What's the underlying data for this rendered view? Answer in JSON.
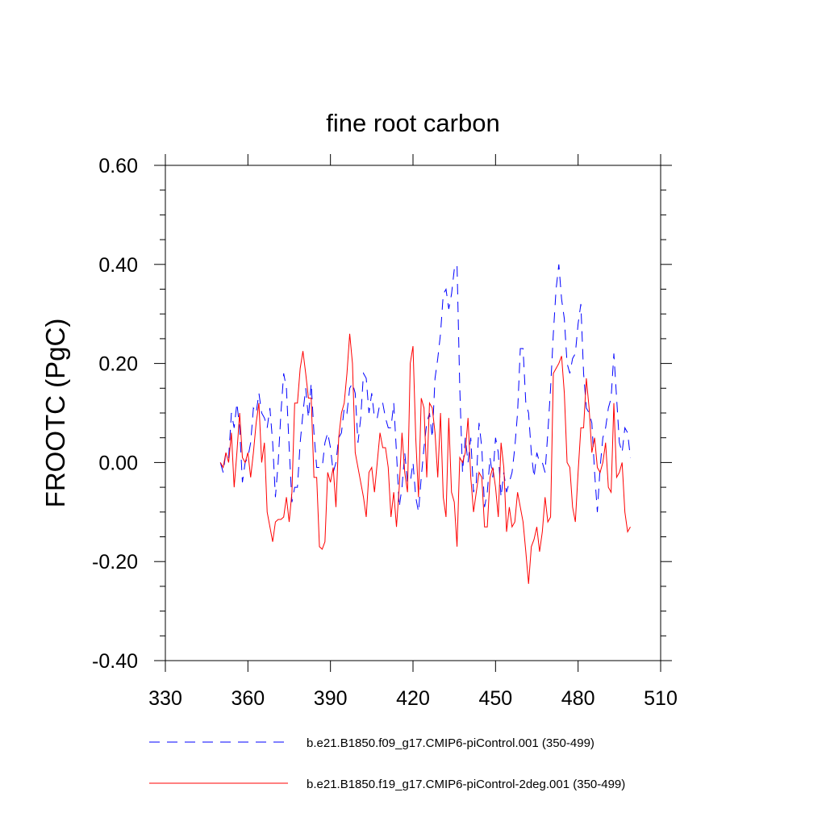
{
  "chart_data": {
    "type": "line",
    "title": "fine root carbon",
    "y_label": "FROOTC  (PgC)",
    "x": [
      350,
      351,
      352,
      353,
      354,
      355,
      356,
      357,
      358,
      359,
      360,
      361,
      362,
      363,
      364,
      365,
      366,
      367,
      368,
      369,
      370,
      371,
      372,
      373,
      374,
      375,
      376,
      377,
      378,
      379,
      380,
      381,
      382,
      383,
      384,
      385,
      386,
      387,
      388,
      389,
      390,
      391,
      392,
      393,
      394,
      395,
      396,
      397,
      398,
      399,
      400,
      401,
      402,
      403,
      404,
      405,
      406,
      407,
      408,
      409,
      410,
      411,
      412,
      413,
      414,
      415,
      416,
      417,
      418,
      419,
      420,
      421,
      422,
      423,
      424,
      425,
      426,
      427,
      428,
      429,
      430,
      431,
      432,
      433,
      434,
      435,
      436,
      437,
      438,
      439,
      440,
      441,
      442,
      443,
      444,
      445,
      446,
      447,
      448,
      449,
      450,
      451,
      452,
      453,
      454,
      455,
      456,
      457,
      458,
      459,
      460,
      461,
      462,
      463,
      464,
      465,
      466,
      467,
      468,
      469,
      470,
      471,
      472,
      473,
      474,
      475,
      476,
      477,
      478,
      479,
      480,
      481,
      482,
      483,
      484,
      485,
      486,
      487,
      488,
      489,
      490,
      491,
      492,
      493,
      494,
      495,
      496,
      497,
      498,
      499
    ],
    "series": [
      {
        "name": "b.e21.B1850.f09_g17.CMIP6-piControl.001 (350-499)",
        "color": "#0000ff",
        "dash": true,
        "values": [
          0.0,
          -0.02,
          0.02,
          0.01,
          0.1,
          0.07,
          0.12,
          0.07,
          -0.04,
          0.0,
          0.01,
          0.04,
          0.11,
          0.1,
          0.14,
          0.1,
          0.09,
          0.07,
          0.11,
          0.04,
          -0.07,
          0.0,
          0.1,
          0.18,
          0.15,
          0.03,
          -0.08,
          -0.05,
          -0.05,
          0.04,
          0.1,
          0.15,
          0.09,
          0.16,
          0.06,
          -0.01,
          -0.01,
          -0.01,
          0.04,
          0.06,
          0.03,
          -0.02,
          0.0,
          0.05,
          0.06,
          0.11,
          0.1,
          0.15,
          0.16,
          0.14,
          0.04,
          0.09,
          0.18,
          0.17,
          0.1,
          0.14,
          0.09,
          0.09,
          0.12,
          0.12,
          0.09,
          0.07,
          0.07,
          0.12,
          0.02,
          -0.09,
          -0.05,
          0.02,
          -0.04,
          -0.04,
          0.0,
          -0.07,
          -0.1,
          -0.03,
          0.03,
          0.08,
          0.1,
          0.05,
          0.17,
          0.21,
          0.26,
          0.34,
          0.35,
          0.31,
          0.34,
          0.39,
          0.4,
          0.15,
          -0.02,
          0.05,
          0.0,
          0.05,
          -0.06,
          -0.04,
          0.08,
          0.03,
          -0.09,
          -0.06,
          0.01,
          -0.03,
          0.05,
          0.02,
          -0.07,
          -0.02,
          -0.06,
          -0.04,
          -0.02,
          0.03,
          0.1,
          0.23,
          0.23,
          0.12,
          0.1,
          0.02,
          -0.03,
          0.02,
          0.0,
          0.0,
          -0.02,
          0.06,
          0.15,
          0.26,
          0.35,
          0.4,
          0.33,
          0.29,
          0.2,
          0.18,
          0.21,
          0.22,
          0.28,
          0.32,
          0.18,
          0.11,
          0.1,
          0.08,
          -0.02,
          -0.1,
          -0.01,
          0.05,
          0.07,
          0.11,
          0.13,
          0.22,
          0.13,
          0.04,
          0.02,
          0.07,
          0.06,
          0.01
        ]
      },
      {
        "name": "b.e21.B1850.f19_g17.CMIP6-piControl-2deg.001 (350-499)",
        "color": "#ff0000",
        "dash": false,
        "values": [
          0.0,
          -0.01,
          0.02,
          0.0,
          0.06,
          -0.05,
          0.02,
          0.1,
          0.01,
          0.0,
          0.02,
          -0.03,
          0.02,
          0.08,
          0.12,
          0.0,
          0.04,
          -0.1,
          -0.13,
          -0.16,
          -0.12,
          -0.115,
          -0.115,
          -0.11,
          -0.07,
          -0.12,
          -0.06,
          0.12,
          0.12,
          0.19,
          0.225,
          0.18,
          0.13,
          0.13,
          -0.03,
          -0.03,
          -0.17,
          -0.175,
          -0.16,
          -0.02,
          -0.04,
          -0.01,
          -0.09,
          0.05,
          0.1,
          0.12,
          0.18,
          0.26,
          0.2,
          0.02,
          -0.01,
          -0.04,
          -0.07,
          -0.11,
          -0.02,
          -0.01,
          -0.06,
          0.0,
          0.06,
          0.03,
          0.03,
          -0.01,
          -0.11,
          -0.06,
          -0.13,
          -0.05,
          0.06,
          -0.02,
          -0.06,
          0.2,
          0.235,
          0.05,
          -0.07,
          0.13,
          0.11,
          -0.03,
          0.12,
          0.11,
          0.06,
          -0.03,
          0.1,
          -0.07,
          -0.11,
          0.09,
          -0.06,
          -0.08,
          -0.17,
          0.01,
          0.0,
          0.02,
          0.09,
          -0.03,
          -0.1,
          -0.06,
          -0.02,
          -0.03,
          -0.13,
          -0.13,
          -0.03,
          -0.01,
          -0.05,
          -0.11,
          0.04,
          -0.01,
          -0.14,
          -0.09,
          -0.13,
          -0.12,
          -0.06,
          -0.09,
          -0.12,
          -0.18,
          -0.245,
          -0.17,
          -0.155,
          -0.13,
          -0.18,
          -0.14,
          -0.07,
          -0.12,
          -0.11,
          0.18,
          0.19,
          0.2,
          0.215,
          0.14,
          0.0,
          -0.01,
          -0.09,
          -0.12,
          -0.02,
          0.07,
          0.07,
          0.17,
          0.11,
          0.02,
          0.05,
          -0.01,
          -0.02,
          0.0,
          0.04,
          -0.05,
          -0.06,
          0.12,
          -0.03,
          -0.02,
          0.0,
          -0.1,
          -0.14,
          -0.13
        ]
      }
    ],
    "xlim": [
      330,
      510
    ],
    "xticks": [
      330,
      360,
      390,
      420,
      450,
      480,
      510
    ],
    "ylim": [
      -0.4,
      0.6
    ],
    "yticks": [
      {
        "value": -0.4,
        "label": "-0.40"
      },
      {
        "value": -0.2,
        "label": "-0.20"
      },
      {
        "value": 0,
        "label": "0.00"
      },
      {
        "value": 0.2,
        "label": "0.20"
      },
      {
        "value": 0.4,
        "label": "0.40"
      },
      {
        "value": 0.6,
        "label": "0.60"
      }
    ],
    "yminorticks": [
      -0.35,
      -0.3,
      -0.25,
      -0.15,
      -0.1,
      -0.05,
      0.05,
      0.1,
      0.15,
      0.25,
      0.3,
      0.35,
      0.45,
      0.5,
      0.55
    ],
    "grid": false
  }
}
